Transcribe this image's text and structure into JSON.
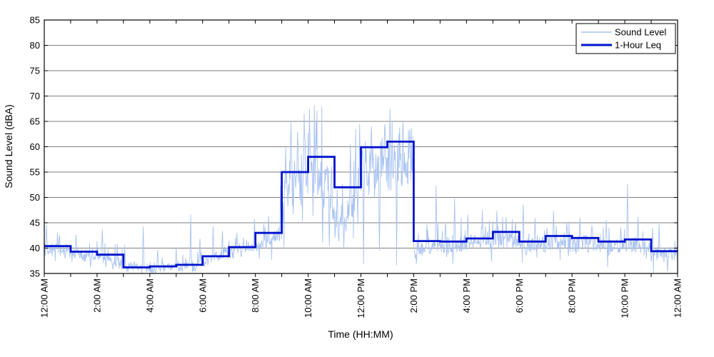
{
  "figure": {
    "background": "#ffffff"
  },
  "chart_data": {
    "type": "line",
    "title": "",
    "xlabel": "Time (HH:MM)",
    "ylabel": "Sound Level (dBA)",
    "ylim": [
      35,
      85
    ],
    "ytick_values": [
      35,
      40,
      45,
      50,
      55,
      60,
      65,
      70,
      75,
      80,
      85
    ],
    "x_hours": 24,
    "xtick_major_hours": [
      0,
      2,
      4,
      6,
      8,
      10,
      12,
      14,
      16,
      18,
      20,
      22,
      24
    ],
    "xtick_labels": [
      "12:00 AM",
      "2:00 AM",
      "4:00 AM",
      "6:00 AM",
      "8:00 AM",
      "10:00 AM",
      "12:00 PM",
      "2:00 PM",
      "4:00 PM",
      "6:00 PM",
      "8:00 PM",
      "10:00 PM",
      "12:00 AM"
    ],
    "xtick_minor_every_hours": 1,
    "grid": "horizontal-solid",
    "legend": {
      "position": "top-right",
      "items": [
        {
          "label": "Sound Level",
          "color": "#aac3f2",
          "width": 1.5
        },
        {
          "label": "1-Hour Leq",
          "color": "#0013cd",
          "width": 3
        }
      ]
    },
    "series": [
      {
        "name": "Sound Level",
        "color": "#aac3f2",
        "kind": "noisy-trace",
        "synthesis": {
          "samples_per_hour": 60,
          "seed": 20240613,
          "hourly_mean_start": [
            39.9,
            39.0,
            38.4,
            36.4,
            36.2,
            36.3,
            37.3,
            39.6,
            40.3,
            50.0,
            57.0,
            44.0,
            55.5,
            58.0,
            39.6,
            40.5,
            41.0,
            41.8,
            40.6,
            41.2,
            41.0,
            40.6,
            40.5,
            39.2
          ],
          "hourly_mean_end": [
            39.3,
            38.4,
            37.0,
            36.2,
            36.3,
            36.6,
            39.3,
            40.2,
            42.6,
            54.5,
            50.0,
            50.0,
            57.0,
            57.0,
            40.8,
            40.8,
            41.5,
            41.6,
            40.9,
            41.2,
            40.8,
            40.3,
            40.2,
            38.7
          ],
          "hourly_amp": [
            1.8,
            1.6,
            1.8,
            1.2,
            1.2,
            1.3,
            1.5,
            1.3,
            2.2,
            8.5,
            8.0,
            5.0,
            6.5,
            8.0,
            2.2,
            2.4,
            2.4,
            2.4,
            2.2,
            2.4,
            2.2,
            2.0,
            2.2,
            2.0
          ],
          "spikes": [
            [
              0.08,
              44.6
            ],
            [
              0.5,
              43.0
            ],
            [
              1.2,
              42.6
            ],
            [
              1.75,
              36.2
            ],
            [
              2.2,
              43.7
            ],
            [
              2.6,
              35.8
            ],
            [
              3.05,
              40.6
            ],
            [
              3.75,
              44.3
            ],
            [
              4.3,
              39.6
            ],
            [
              5.0,
              40.0
            ],
            [
              5.55,
              46.6
            ],
            [
              5.9,
              41.9
            ],
            [
              6.4,
              44.3
            ],
            [
              6.75,
              43.4
            ],
            [
              7.3,
              43.0
            ],
            [
              7.97,
              45.7
            ],
            [
              8.5,
              46.4
            ],
            [
              8.95,
              52.4
            ],
            [
              9.15,
              60.0
            ],
            [
              9.35,
              65.0
            ],
            [
              9.6,
              63.0
            ],
            [
              9.85,
              66.5
            ],
            [
              10.05,
              67.5
            ],
            [
              10.3,
              65.0
            ],
            [
              10.55,
              41.0
            ],
            [
              10.8,
              40.3
            ],
            [
              11.1,
              51.5
            ],
            [
              11.35,
              39.8
            ],
            [
              11.6,
              60.5
            ],
            [
              11.8,
              63.5
            ],
            [
              11.95,
              64.5
            ],
            [
              12.1,
              36.8
            ],
            [
              12.4,
              64.0
            ],
            [
              12.7,
              39.5
            ],
            [
              12.9,
              64.5
            ],
            [
              13.1,
              67.5
            ],
            [
              13.35,
              36.6
            ],
            [
              13.6,
              65.0
            ],
            [
              13.85,
              63.5
            ],
            [
              14.1,
              36.9
            ],
            [
              14.5,
              44.8
            ],
            [
              14.85,
              52.3
            ],
            [
              15.2,
              45.0
            ],
            [
              15.55,
              49.8
            ],
            [
              16.05,
              46.6
            ],
            [
              16.6,
              47.5
            ],
            [
              17.15,
              47.4
            ],
            [
              17.5,
              46.1
            ],
            [
              18.15,
              48.6
            ],
            [
              18.6,
              46.0
            ],
            [
              19.05,
              44.0
            ],
            [
              19.3,
              47.3
            ],
            [
              19.8,
              45.0
            ],
            [
              20.3,
              46.0
            ],
            [
              20.75,
              44.5
            ],
            [
              21.3,
              45.6
            ],
            [
              21.85,
              44.1
            ],
            [
              22.1,
              52.6
            ],
            [
              22.5,
              46.2
            ],
            [
              23.05,
              44.0
            ],
            [
              23.3,
              44.7
            ],
            [
              23.62,
              35.4
            ],
            [
              23.97,
              40.3
            ]
          ]
        }
      },
      {
        "name": "1-Hour Leq",
        "color": "#0013cd",
        "kind": "hourly-step",
        "hourly_values": [
          40.4,
          39.3,
          38.7,
          36.2,
          36.4,
          36.7,
          38.4,
          40.2,
          43.0,
          55.0,
          58.0,
          52.0,
          59.9,
          61.0,
          41.4,
          41.3,
          41.9,
          43.2,
          41.3,
          42.4,
          42.0,
          41.3,
          41.7,
          39.4
        ]
      }
    ]
  }
}
